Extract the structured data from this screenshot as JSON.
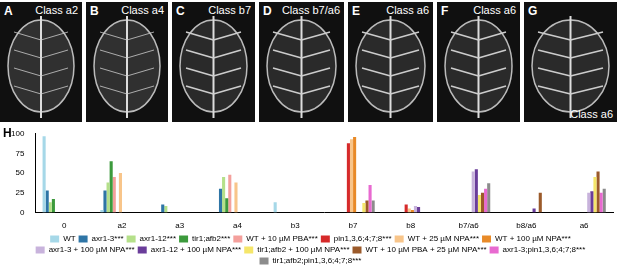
{
  "panels": [
    {
      "letter": "A",
      "label": "Class a2"
    },
    {
      "letter": "B",
      "label": "Class a4"
    },
    {
      "letter": "C",
      "label": "Class b7"
    },
    {
      "letter": "D",
      "label": "Class b7/a6"
    },
    {
      "letter": "E",
      "label": "Class a6"
    },
    {
      "letter": "F",
      "label": "Class a6"
    },
    {
      "letter": "G",
      "label": "Class a6"
    }
  ],
  "chart_letter": "H",
  "chart_data": {
    "type": "bar",
    "categories": [
      "0",
      "a2",
      "a3",
      "a4",
      "b3",
      "b7",
      "b8",
      "b7/a6",
      "b8/a6",
      "a6"
    ],
    "series": [
      {
        "name": "WT",
        "color": "#a6d8e8",
        "values": [
          97,
          3,
          0,
          0,
          13,
          0,
          0,
          0,
          0,
          0
        ]
      },
      {
        "name": "axr1-3***",
        "color": "#2e75a6",
        "values": [
          28,
          28,
          10,
          30,
          0,
          0,
          0,
          0,
          0,
          0
        ]
      },
      {
        "name": "axr1-12***",
        "color": "#b5e08a",
        "values": [
          13,
          38,
          8,
          45,
          0,
          0,
          0,
          0,
          0,
          0
        ]
      },
      {
        "name": "tir1;afb2***",
        "color": "#3c9a3c",
        "values": [
          17,
          65,
          0,
          18,
          0,
          0,
          0,
          0,
          0,
          0
        ]
      },
      {
        "name": "WT + 10 µM PBA***",
        "color": "#f4a09c",
        "values": [
          0,
          45,
          0,
          48,
          0,
          0,
          0,
          0,
          0,
          0
        ]
      },
      {
        "name": "pin1,3,6;4;7;8***",
        "color": "#d62a2a",
        "values": [
          0,
          0,
          0,
          0,
          0,
          88,
          10,
          0,
          0,
          0
        ]
      },
      {
        "name": "WT + 25 µM NPA***",
        "color": "#f8c58a",
        "values": [
          0,
          50,
          0,
          38,
          0,
          93,
          5,
          0,
          0,
          0
        ]
      },
      {
        "name": "WT + 100 µM NPA***",
        "color": "#e88a28",
        "values": [
          0,
          0,
          0,
          0,
          0,
          96,
          3,
          0,
          0,
          0
        ]
      },
      {
        "name": "axr1-3 + 100 µM NPA***",
        "color": "#c8b3dc",
        "values": [
          0,
          0,
          0,
          0,
          0,
          0,
          8,
          52,
          0,
          25
        ]
      },
      {
        "name": "axr1-12 + 100 µM NPA***",
        "color": "#6a3d9a",
        "values": [
          0,
          0,
          0,
          0,
          0,
          0,
          7,
          55,
          5,
          27
        ]
      },
      {
        "name": "tir1;afb2 + 100 µM NPA***",
        "color": "#f5e66a",
        "values": [
          0,
          0,
          0,
          0,
          0,
          12,
          0,
          22,
          0,
          45
        ]
      },
      {
        "name": "WT + 10 µM PBA + 25 µM NPA***",
        "color": "#9b5a2a",
        "values": [
          0,
          0,
          0,
          0,
          0,
          15,
          0,
          25,
          25,
          52
        ]
      },
      {
        "name": "axr1-3;pin1,3,6;4;7;8***",
        "color": "#e86ad0",
        "values": [
          0,
          0,
          0,
          0,
          0,
          35,
          0,
          30,
          0,
          25
        ]
      },
      {
        "name": "tir1;afb2;pin1,3,6;4;7;8***",
        "color": "#8c8c8c",
        "values": [
          0,
          0,
          0,
          0,
          0,
          15,
          0,
          37,
          0,
          30
        ]
      }
    ],
    "ylim": [
      0,
      100
    ],
    "yticks": [
      0,
      25,
      50,
      75,
      100
    ],
    "grid": false,
    "legend": "bottom"
  }
}
